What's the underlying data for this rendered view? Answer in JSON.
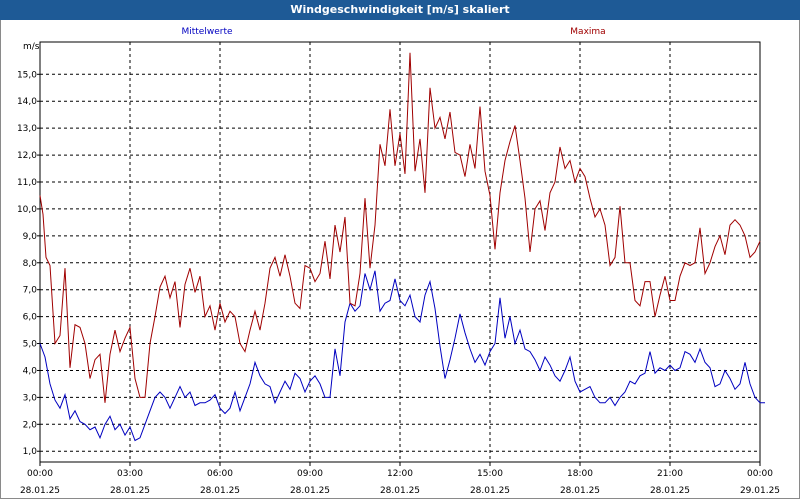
{
  "window": {
    "title": "Windgeschwindigkeit [m/s] skaliert"
  },
  "colors": {
    "titlebar": "#1e5a96",
    "mean": "#0000c0",
    "max": "#a00000",
    "grid": "#000000"
  },
  "chart_data": {
    "type": "line",
    "title": "Windgeschwindigkeit [m/s] skaliert",
    "ylabel": "m/s",
    "ylim": [
      0.6,
      16.2
    ],
    "grid": true,
    "grid_style": "dashed",
    "legend_placement": "top",
    "y_ticks": [
      "1,0",
      "2,0",
      "3,0",
      "4,0",
      "5,0",
      "6,0",
      "7,0",
      "8,0",
      "9,0",
      "10,0",
      "11,0",
      "12,0",
      "13,0",
      "14,0",
      "15,0"
    ],
    "x_ticks": [
      {
        "time": "00:00",
        "date": "28.01.25"
      },
      {
        "time": "03:00",
        "date": "28.01.25"
      },
      {
        "time": "06:00",
        "date": "28.01.25"
      },
      {
        "time": "09:00",
        "date": "28.01.25"
      },
      {
        "time": "12:00",
        "date": "28.01.25"
      },
      {
        "time": "15:00",
        "date": "28.01.25"
      },
      {
        "time": "18:00",
        "date": "28.01.25"
      },
      {
        "time": "21:00",
        "date": "28.01.25"
      },
      {
        "time": "00:00",
        "date": "29.01.25"
      }
    ],
    "x_unit": "hours since 28.01.25 00:00",
    "series": [
      {
        "name": "Mittelwerte",
        "color": "#0000c0",
        "points": [
          [
            0.0,
            5.0
          ],
          [
            0.25,
            4.5
          ],
          [
            0.5,
            3.5
          ],
          [
            0.75,
            2.9
          ],
          [
            1.0,
            2.6
          ],
          [
            1.25,
            3.1
          ],
          [
            1.5,
            2.2
          ],
          [
            1.75,
            2.5
          ],
          [
            2.0,
            2.1
          ],
          [
            2.25,
            2.0
          ],
          [
            2.5,
            1.8
          ],
          [
            2.75,
            1.9
          ],
          [
            3.0,
            1.5
          ],
          [
            3.25,
            2.0
          ],
          [
            3.5,
            2.3
          ],
          [
            3.75,
            1.8
          ],
          [
            4.0,
            2.0
          ],
          [
            4.25,
            1.6
          ],
          [
            4.5,
            1.9
          ],
          [
            4.75,
            1.4
          ],
          [
            5.0,
            1.5
          ],
          [
            5.25,
            2.0
          ],
          [
            5.5,
            2.5
          ],
          [
            5.75,
            3.0
          ],
          [
            6.0,
            3.2
          ],
          [
            6.25,
            3.0
          ],
          [
            6.5,
            2.6
          ],
          [
            6.75,
            3.0
          ],
          [
            7.0,
            3.4
          ],
          [
            7.25,
            3.0
          ],
          [
            7.5,
            3.2
          ],
          [
            7.75,
            2.7
          ],
          [
            8.0,
            2.8
          ],
          [
            8.25,
            2.8
          ],
          [
            8.5,
            2.9
          ],
          [
            8.75,
            3.1
          ],
          [
            9.0,
            2.6
          ],
          [
            9.25,
            2.4
          ],
          [
            9.5,
            2.6
          ],
          [
            9.75,
            3.2
          ],
          [
            10.0,
            2.5
          ],
          [
            10.25,
            3.0
          ],
          [
            10.5,
            3.5
          ],
          [
            10.75,
            4.3
          ],
          [
            11.0,
            3.8
          ],
          [
            11.25,
            3.5
          ],
          [
            11.5,
            3.4
          ],
          [
            11.75,
            2.8
          ],
          [
            12.0,
            3.2
          ],
          [
            12.25,
            3.6
          ],
          [
            12.5,
            3.3
          ],
          [
            12.75,
            3.9
          ],
          [
            13.0,
            3.7
          ],
          [
            13.25,
            3.2
          ],
          [
            13.5,
            3.6
          ],
          [
            13.75,
            3.8
          ],
          [
            14.0,
            3.5
          ],
          [
            14.25,
            3.0
          ],
          [
            14.5,
            3.0
          ],
          [
            14.75,
            4.8
          ],
          [
            15.0,
            3.8
          ],
          [
            15.25,
            5.8
          ],
          [
            15.5,
            6.5
          ],
          [
            15.75,
            6.2
          ],
          [
            16.0,
            6.4
          ],
          [
            16.25,
            7.6
          ],
          [
            16.5,
            7.0
          ],
          [
            16.75,
            7.7
          ],
          [
            17.0,
            6.2
          ],
          [
            17.25,
            6.5
          ],
          [
            17.5,
            6.6
          ],
          [
            17.75,
            7.4
          ],
          [
            18.0,
            6.6
          ],
          [
            18.25,
            6.4
          ],
          [
            18.5,
            6.8
          ],
          [
            18.75,
            6.0
          ],
          [
            19.0,
            5.8
          ],
          [
            19.25,
            6.8
          ],
          [
            19.5,
            7.3
          ],
          [
            19.75,
            6.3
          ],
          [
            20.0,
            4.9
          ],
          [
            20.25,
            3.7
          ],
          [
            20.5,
            4.4
          ],
          [
            20.75,
            5.2
          ],
          [
            21.0,
            6.1
          ],
          [
            21.25,
            5.4
          ],
          [
            21.5,
            4.8
          ],
          [
            21.75,
            4.3
          ],
          [
            22.0,
            4.6
          ],
          [
            22.25,
            4.2
          ],
          [
            22.5,
            4.7
          ],
          [
            22.75,
            5.0
          ],
          [
            23.0,
            6.7
          ],
          [
            23.25,
            5.2
          ],
          [
            23.5,
            6.0
          ],
          [
            23.75,
            5.0
          ],
          [
            24.0,
            5.5
          ],
          [
            24.25,
            4.8
          ],
          [
            24.5,
            4.7
          ],
          [
            24.75,
            4.4
          ],
          [
            25.0,
            4.0
          ],
          [
            25.25,
            4.5
          ],
          [
            25.5,
            4.2
          ],
          [
            25.75,
            3.8
          ],
          [
            26.0,
            3.6
          ],
          [
            26.25,
            4.0
          ],
          [
            26.5,
            4.5
          ],
          [
            26.75,
            3.6
          ],
          [
            27.0,
            3.2
          ],
          [
            27.25,
            3.3
          ],
          [
            27.5,
            3.4
          ],
          [
            27.75,
            3.0
          ],
          [
            28.0,
            2.8
          ],
          [
            28.25,
            2.8
          ],
          [
            28.5,
            3.0
          ],
          [
            28.75,
            2.7
          ],
          [
            29.0,
            3.0
          ],
          [
            29.25,
            3.2
          ],
          [
            29.5,
            3.6
          ],
          [
            29.75,
            3.5
          ],
          [
            30.0,
            3.8
          ],
          [
            30.25,
            3.9
          ],
          [
            30.5,
            4.7
          ],
          [
            30.75,
            3.9
          ],
          [
            31.0,
            4.1
          ],
          [
            31.25,
            4.0
          ],
          [
            31.5,
            4.2
          ],
          [
            31.75,
            4.0
          ],
          [
            32.0,
            4.1
          ],
          [
            32.25,
            4.7
          ],
          [
            32.5,
            4.6
          ],
          [
            32.75,
            4.3
          ],
          [
            33.0,
            4.8
          ],
          [
            33.25,
            4.3
          ],
          [
            33.5,
            4.1
          ],
          [
            33.75,
            3.4
          ],
          [
            34.0,
            3.5
          ],
          [
            34.25,
            4.0
          ],
          [
            34.5,
            3.7
          ],
          [
            34.75,
            3.3
          ],
          [
            35.0,
            3.5
          ],
          [
            35.25,
            4.3
          ],
          [
            35.5,
            3.5
          ],
          [
            35.75,
            3.0
          ],
          [
            36.0,
            2.8
          ],
          [
            36.25,
            2.8
          ]
        ]
      },
      {
        "name": "Maxima",
        "color": "#a00000",
        "points": [
          [
            0.0,
            10.5
          ],
          [
            0.15,
            9.8
          ],
          [
            0.3,
            8.2
          ],
          [
            0.5,
            7.9
          ],
          [
            0.75,
            5.0
          ],
          [
            1.0,
            5.3
          ],
          [
            1.25,
            7.8
          ],
          [
            1.5,
            4.1
          ],
          [
            1.75,
            5.7
          ],
          [
            2.0,
            5.6
          ],
          [
            2.25,
            5.0
          ],
          [
            2.5,
            3.7
          ],
          [
            2.75,
            4.4
          ],
          [
            3.0,
            4.6
          ],
          [
            3.25,
            2.8
          ],
          [
            3.5,
            4.6
          ],
          [
            3.75,
            5.5
          ],
          [
            4.0,
            4.7
          ],
          [
            4.25,
            5.2
          ],
          [
            4.5,
            5.6
          ],
          [
            4.75,
            3.7
          ],
          [
            5.0,
            3.0
          ],
          [
            5.25,
            3.0
          ],
          [
            5.5,
            5.0
          ],
          [
            5.75,
            6.0
          ],
          [
            6.0,
            7.1
          ],
          [
            6.25,
            7.5
          ],
          [
            6.5,
            6.7
          ],
          [
            6.75,
            7.3
          ],
          [
            7.0,
            5.6
          ],
          [
            7.25,
            7.2
          ],
          [
            7.5,
            7.8
          ],
          [
            7.75,
            6.9
          ],
          [
            8.0,
            7.5
          ],
          [
            8.25,
            6.0
          ],
          [
            8.5,
            6.4
          ],
          [
            8.75,
            5.5
          ],
          [
            9.0,
            6.5
          ],
          [
            9.25,
            5.8
          ],
          [
            9.5,
            6.2
          ],
          [
            9.75,
            6.0
          ],
          [
            10.0,
            5.0
          ],
          [
            10.25,
            4.7
          ],
          [
            10.5,
            5.5
          ],
          [
            10.75,
            6.2
          ],
          [
            11.0,
            5.5
          ],
          [
            11.25,
            6.5
          ],
          [
            11.5,
            7.8
          ],
          [
            11.75,
            8.2
          ],
          [
            12.0,
            7.5
          ],
          [
            12.25,
            8.3
          ],
          [
            12.5,
            7.5
          ],
          [
            12.75,
            6.5
          ],
          [
            13.0,
            6.3
          ],
          [
            13.25,
            7.9
          ],
          [
            13.5,
            7.8
          ],
          [
            13.75,
            7.3
          ],
          [
            14.0,
            7.6
          ],
          [
            14.25,
            8.8
          ],
          [
            14.5,
            7.4
          ],
          [
            14.75,
            9.4
          ],
          [
            15.0,
            8.4
          ],
          [
            15.25,
            9.7
          ],
          [
            15.5,
            6.5
          ],
          [
            15.75,
            6.4
          ],
          [
            16.0,
            7.6
          ],
          [
            16.25,
            10.4
          ],
          [
            16.5,
            7.8
          ],
          [
            16.75,
            9.4
          ],
          [
            17.0,
            12.4
          ],
          [
            17.25,
            11.6
          ],
          [
            17.5,
            13.7
          ],
          [
            17.75,
            11.6
          ],
          [
            18.0,
            12.8
          ],
          [
            18.25,
            11.3
          ],
          [
            18.5,
            15.8
          ],
          [
            18.75,
            11.4
          ],
          [
            19.0,
            12.6
          ],
          [
            19.25,
            10.6
          ],
          [
            19.5,
            14.5
          ],
          [
            19.75,
            13.0
          ],
          [
            20.0,
            13.4
          ],
          [
            20.25,
            12.6
          ],
          [
            20.5,
            13.6
          ],
          [
            20.75,
            12.1
          ],
          [
            21.0,
            12.0
          ],
          [
            21.25,
            11.2
          ],
          [
            21.5,
            12.4
          ],
          [
            21.75,
            11.5
          ],
          [
            22.0,
            13.8
          ],
          [
            22.25,
            11.4
          ],
          [
            22.5,
            10.5
          ],
          [
            22.75,
            8.5
          ],
          [
            23.0,
            10.6
          ],
          [
            23.25,
            11.8
          ],
          [
            23.5,
            12.5
          ],
          [
            23.75,
            13.1
          ],
          [
            24.0,
            11.8
          ],
          [
            24.25,
            10.4
          ],
          [
            24.5,
            8.4
          ],
          [
            24.75,
            10.0
          ],
          [
            25.0,
            10.3
          ],
          [
            25.25,
            9.2
          ],
          [
            25.5,
            10.6
          ],
          [
            25.75,
            11.0
          ],
          [
            26.0,
            12.3
          ],
          [
            26.25,
            11.5
          ],
          [
            26.5,
            11.8
          ],
          [
            26.75,
            11.0
          ],
          [
            27.0,
            11.5
          ],
          [
            27.25,
            11.2
          ],
          [
            27.5,
            10.4
          ],
          [
            27.75,
            9.7
          ],
          [
            28.0,
            10.0
          ],
          [
            28.25,
            9.4
          ],
          [
            28.5,
            7.9
          ],
          [
            28.75,
            8.2
          ],
          [
            29.0,
            10.1
          ],
          [
            29.25,
            8.0
          ],
          [
            29.5,
            8.0
          ],
          [
            29.75,
            6.6
          ],
          [
            30.0,
            6.4
          ],
          [
            30.25,
            7.3
          ],
          [
            30.5,
            7.3
          ],
          [
            30.75,
            6.0
          ],
          [
            31.0,
            6.8
          ],
          [
            31.25,
            7.5
          ],
          [
            31.5,
            6.6
          ],
          [
            31.75,
            6.6
          ],
          [
            32.0,
            7.5
          ],
          [
            32.25,
            8.0
          ],
          [
            32.5,
            7.9
          ],
          [
            32.75,
            8.0
          ],
          [
            33.0,
            9.3
          ],
          [
            33.25,
            7.6
          ],
          [
            33.5,
            8.0
          ],
          [
            33.75,
            8.6
          ],
          [
            34.0,
            9.0
          ],
          [
            34.25,
            8.3
          ],
          [
            34.5,
            9.4
          ],
          [
            34.75,
            9.6
          ],
          [
            35.0,
            9.4
          ],
          [
            35.25,
            9.0
          ],
          [
            35.5,
            8.2
          ],
          [
            35.75,
            8.4
          ],
          [
            36.0,
            8.8
          ]
        ]
      }
    ]
  }
}
